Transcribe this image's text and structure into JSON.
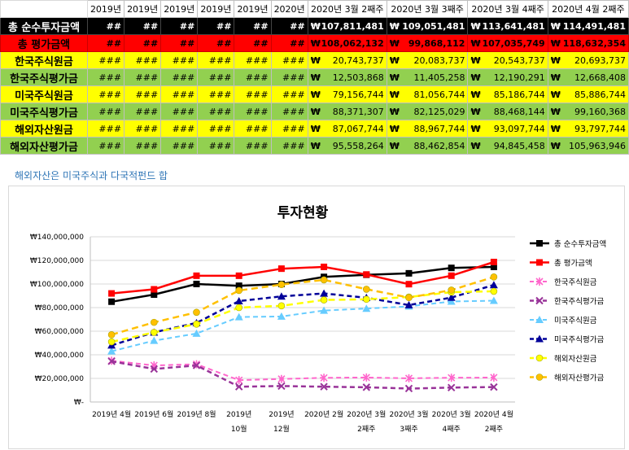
{
  "sheet": {
    "header": [
      "2019년",
      "2019년",
      "2019년",
      "2019년",
      "2019년",
      "2020년",
      "2020년 3월 2째주",
      "2020년 3월 3째주",
      "2020년 3월 4째주",
      "2020년 4월 2째주"
    ],
    "currency": "₩",
    "rows": [
      {
        "label": "총 순수투자금액",
        "style": "r1",
        "hash": "##",
        "values": [
          "107,811,481",
          "109,051,481",
          "113,641,481",
          "114,491,481"
        ]
      },
      {
        "label": "총 평가금액",
        "style": "r2",
        "hash": "##",
        "values": [
          "108,062,132",
          "99,868,112",
          "107,035,749",
          "118,632,354"
        ]
      },
      {
        "label": "한국주식원금",
        "style": "yl",
        "hash": "###",
        "values": [
          "20,743,737",
          "20,083,737",
          "20,543,737",
          "20,693,737"
        ]
      },
      {
        "label": "한국주식평가금",
        "style": "gr",
        "hash": "###",
        "values": [
          "12,503,868",
          "11,405,258",
          "12,190,291",
          "12,668,408"
        ]
      },
      {
        "label": "미국주식원금",
        "style": "yl",
        "hash": "###",
        "values": [
          "79,156,744",
          "81,056,744",
          "85,186,744",
          "85,886,744"
        ]
      },
      {
        "label": "미국주식평가금",
        "style": "gr",
        "hash": "###",
        "values": [
          "88,371,307",
          "82,125,029",
          "88,468,144",
          "99,160,368"
        ]
      },
      {
        "label": "해외자산원금",
        "style": "yl",
        "hash": "###",
        "values": [
          "87,067,744",
          "88,967,744",
          "93,097,744",
          "93,797,744"
        ]
      },
      {
        "label": "해외자산평가금",
        "style": "gr",
        "hash": "###",
        "values": [
          "95,558,264",
          "88,462,854",
          "94,845,458",
          "105,963,946"
        ]
      }
    ]
  },
  "note": "해외자산은 미국주식과 다국적펀드 합",
  "chart_data": {
    "type": "line",
    "title": "투자현황",
    "categories": [
      [
        "2019년 4월"
      ],
      [
        "2019년 6월"
      ],
      [
        "2019년 8월"
      ],
      [
        "2019년",
        "10월"
      ],
      [
        "2019년",
        "12월"
      ],
      [
        "2020년 2월"
      ],
      [
        "2020년 3월",
        "2째주"
      ],
      [
        "2020년 3월",
        "3째주"
      ],
      [
        "2020년 3월",
        "4째주"
      ],
      [
        "2020년 4월",
        "2째주"
      ]
    ],
    "ylim": [
      0,
      140000000
    ],
    "yticks": [
      "₩-",
      "₩20,000,000",
      "₩40,000,000",
      "₩60,000,000",
      "₩80,000,000",
      "₩100,000,000",
      "₩120,000,000",
      "₩140,000,000"
    ],
    "grid": true,
    "legend_position": "right",
    "series": [
      {
        "name": "총 순수투자금액",
        "color": "#000000",
        "dash": "",
        "marker": "square",
        "width": 2.5,
        "values": [
          85000000,
          91000000,
          100000000,
          98500000,
          100000000,
          106000000,
          107811481,
          109051481,
          113641481,
          114491481
        ]
      },
      {
        "name": "총 평가금액",
        "color": "#ff0000",
        "dash": "",
        "marker": "square",
        "width": 2.5,
        "values": [
          92000000,
          95500000,
          107000000,
          107000000,
          113000000,
          114500000,
          108062132,
          99868112,
          107035749,
          118632354
        ]
      },
      {
        "name": "한국주식원금",
        "color": "#ff66cc",
        "dash": "6,4",
        "marker": "star",
        "width": 2,
        "values": [
          35000000,
          31000000,
          32000000,
          18500000,
          19500000,
          20500000,
          20743737,
          20083737,
          20543737,
          20693737
        ]
      },
      {
        "name": "한국주식평가금",
        "color": "#993399",
        "dash": "6,4",
        "marker": "x",
        "width": 2.5,
        "values": [
          34500000,
          28000000,
          31000000,
          13000000,
          13500000,
          13000000,
          12503868,
          11405258,
          12190291,
          12668408
        ]
      },
      {
        "name": "미국주식원금",
        "color": "#66ccff",
        "dash": "6,4",
        "marker": "triangle",
        "width": 2,
        "values": [
          43000000,
          52000000,
          58000000,
          72000000,
          72500000,
          77500000,
          79156744,
          81056744,
          85186744,
          85886744
        ]
      },
      {
        "name": "미국주식평가금",
        "color": "#000099",
        "dash": "6,4",
        "marker": "triangle",
        "width": 2.5,
        "values": [
          48000000,
          59000000,
          67000000,
          85500000,
          89500000,
          92000000,
          88371307,
          82125029,
          88468144,
          99160368
        ]
      },
      {
        "name": "해외자산원금",
        "color": "#ffff00",
        "dash": "8,5",
        "marker": "circle",
        "width": 2.5,
        "values": [
          51000000,
          59000000,
          66000000,
          80000000,
          81500000,
          86500000,
          87067744,
          88967744,
          93097744,
          93797744
        ]
      },
      {
        "name": "해외자산평가금",
        "color": "#ffc000",
        "dash": "8,5",
        "marker": "circle",
        "width": 2.5,
        "values": [
          57000000,
          67500000,
          76000000,
          94500000,
          99500000,
          103500000,
          95558264,
          88462854,
          94845458,
          105963946
        ]
      }
    ]
  }
}
